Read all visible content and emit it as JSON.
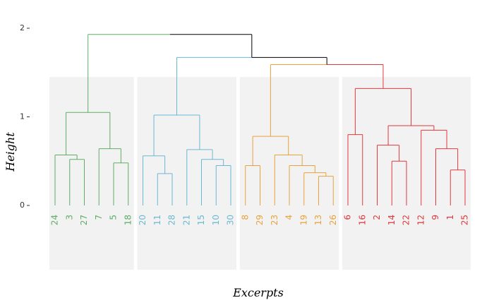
{
  "chart_data": {
    "type": "dendrogram",
    "xlabel": "Excerpts",
    "ylabel": "Height",
    "ylim": [
      0,
      2
    ],
    "yticks": [
      "0",
      "1",
      "2"
    ],
    "leaf_order": [
      24,
      3,
      27,
      7,
      5,
      18,
      20,
      11,
      28,
      21,
      15,
      10,
      30,
      8,
      29,
      23,
      4,
      19,
      13,
      26,
      6,
      16,
      2,
      14,
      22,
      12,
      9,
      1,
      25
    ],
    "clusters": [
      {
        "color": "#5FAD65",
        "leaves": [
          24,
          3,
          27,
          7,
          5,
          18
        ],
        "tree": {
          "h": 1.05,
          "c": [
            {
              "h": 0.57,
              "c": [
                24,
                {
                  "h": 0.52,
                  "c": [
                    3,
                    27
                  ]
                }
              ]
            },
            {
              "h": 0.64,
              "c": [
                7,
                {
                  "h": 0.48,
                  "c": [
                    5,
                    18
                  ]
                }
              ]
            }
          ]
        }
      },
      {
        "color": "#6BB8D4",
        "leaves": [
          20,
          11,
          28,
          21,
          15,
          10,
          30
        ],
        "tree": {
          "h": 1.02,
          "c": [
            {
              "h": 0.56,
              "c": [
                20,
                {
                  "h": 0.36,
                  "c": [
                    11,
                    28
                  ]
                }
              ]
            },
            {
              "h": 0.63,
              "c": [
                21,
                {
                  "h": 0.52,
                  "c": [
                    15,
                    {
                      "h": 0.45,
                      "c": [
                        10,
                        30
                      ]
                    }
                  ]
                }
              ]
            }
          ]
        }
      },
      {
        "color": "#E8A33C",
        "leaves": [
          8,
          29,
          23,
          4,
          19,
          13,
          26
        ],
        "tree": {
          "h": 0.78,
          "c": [
            {
              "h": 0.45,
              "c": [
                8,
                29
              ]
            },
            {
              "h": 0.57,
              "c": [
                23,
                {
                  "h": 0.45,
                  "c": [
                    4,
                    {
                      "h": 0.37,
                      "c": [
                        19,
                        {
                          "h": 0.33,
                          "c": [
                            13,
                            26
                          ]
                        }
                      ]
                    }
                  ]
                }
              ]
            }
          ]
        }
      },
      {
        "color": "#E0383E",
        "leaves": [
          6,
          16,
          2,
          14,
          22,
          12,
          9,
          1,
          25
        ],
        "tree": {
          "h": 1.32,
          "c": [
            {
              "h": 0.8,
              "c": [
                6,
                16
              ]
            },
            {
              "h": 0.9,
              "c": [
                {
                  "h": 0.68,
                  "c": [
                    2,
                    {
                      "h": 0.5,
                      "c": [
                        14,
                        22
                      ]
                    }
                  ]
                },
                {
                  "h": 0.85,
                  "c": [
                    12,
                    {
                      "h": 0.64,
                      "c": [
                        9,
                        {
                          "h": 0.4,
                          "c": [
                            1,
                            25
                          ]
                        }
                      ]
                    }
                  ]
                }
              ]
            }
          ]
        }
      }
    ],
    "upper_links": [
      {
        "color": "#E8A33C",
        "join": [
          2,
          3
        ],
        "h": 1.59,
        "branch_color": [
          "#E8A33C",
          "#E0383E"
        ]
      },
      {
        "color": "#000000",
        "join": [
          "prev",
          1
        ],
        "h": 1.67,
        "branch_color": [
          "#000000",
          "#6BB8D4"
        ]
      },
      {
        "color": "#000000",
        "join": [
          0,
          "prev"
        ],
        "h": 1.93,
        "branch_color": [
          "#5FAD65",
          "#000000"
        ]
      }
    ],
    "link_heights": {
      "cluster_3_4": 1.59,
      "with_cluster_2": 1.67,
      "root": 1.93
    },
    "link_colors": {
      "cluster_3_4": "#E8A33C",
      "with_cluster_2": "#000000",
      "root": "#000000"
    },
    "cluster_boxes": true,
    "grid": false
  }
}
